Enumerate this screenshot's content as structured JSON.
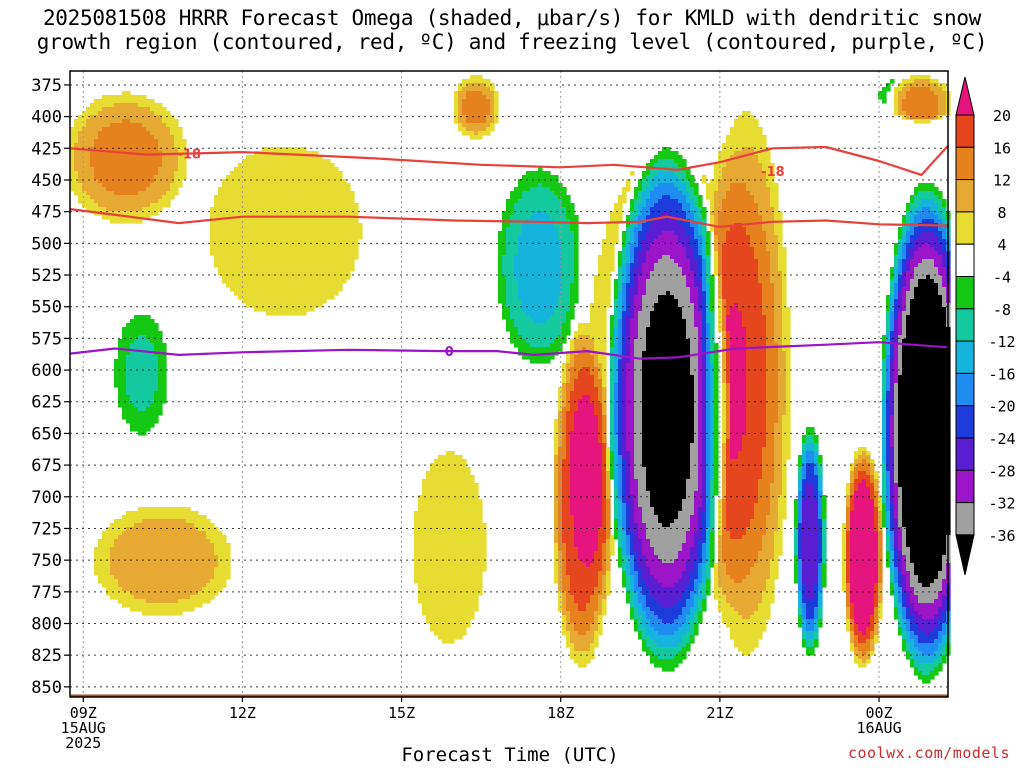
{
  "title_line1": "2025081508 HRRR Forecast Omega (shaded, μbar/s) for KMLD with dendritic snow",
  "title_line2": "growth region (contoured, red, ºC) and freezing level (contoured, purple, ºC)",
  "x_axis_label": "Forecast Time (UTC)",
  "credit": "coolwx.com/models",
  "colors": {
    "dgz_contour": "#e8413c",
    "freezing_contour": "#9a14c8",
    "ground": "#a0522d",
    "omega_scale": {
      "lt_-36": "#000000",
      "-36_-32": "#a0a0a0",
      "-32_-28": "#9a14c8",
      "-28_-24": "#5a1ed2",
      "-24_-20": "#1e3cdc",
      "-20_-16": "#1e8cf0",
      "-16_-12": "#14b4dc",
      "-12_-8": "#14c8a0",
      "-8_-4": "#14c814",
      "-4_4": "#ffffff",
      "4_8": "#e6dc32",
      "8_12": "#e6aa32",
      "12_16": "#e6821e",
      "16_20": "#e6461e",
      "gt_20": "#e6147d"
    }
  },
  "chart_data": {
    "type": "heatmap",
    "title": "2025081508 HRRR Forecast Omega (shaded, μbar/s) for KMLD with dendritic snow growth region (contoured, red, ºC) and freezing level (contoured, purple, ºC)",
    "xlabel": "Forecast Time (UTC)",
    "ylabel": "",
    "y_axis": {
      "unit": "hPa",
      "inverted": true,
      "range": [
        364,
        858
      ],
      "ticks": [
        375,
        400,
        425,
        450,
        475,
        500,
        525,
        550,
        575,
        600,
        625,
        650,
        675,
        700,
        725,
        750,
        775,
        800,
        825,
        850
      ]
    },
    "x_axis": {
      "unit": "hours UTC from 2025-08-15 09Z",
      "range": [
        -0.25,
        16.3
      ],
      "ticks": [
        {
          "hour": 0,
          "label": "09Z",
          "label2": "15AUG",
          "label3": "2025"
        },
        {
          "hour": 3,
          "label": "12Z",
          "label2": "",
          "label3": ""
        },
        {
          "hour": 6,
          "label": "15Z",
          "label2": "",
          "label3": ""
        },
        {
          "hour": 9,
          "label": "18Z",
          "label2": "",
          "label3": ""
        },
        {
          "hour": 12,
          "label": "21Z",
          "label2": "",
          "label3": ""
        },
        {
          "hour": 15,
          "label": "00Z",
          "label2": "16AUG",
          "label3": ""
        }
      ]
    },
    "colorbar": {
      "labels": [
        "20",
        "16",
        "12",
        "8",
        "4",
        "-4",
        "-8",
        "-12",
        "-16",
        "-20",
        "-24",
        "-28",
        "-32",
        "-36"
      ],
      "boundaries": [
        20,
        16,
        12,
        8,
        4,
        -4,
        -8,
        -12,
        -16,
        -20,
        -24,
        -28,
        -32,
        -36
      ],
      "bins_top_to_bottom": [
        "gt_20",
        "16_20",
        "12_16",
        "8_12",
        "4_8",
        "-4_4",
        "-8_-4",
        "-12_-8",
        "-16_-12",
        "-20_-16",
        "-24_-20",
        "-28_-24",
        "-32_-28",
        "-36_-32",
        "lt_-36"
      ]
    },
    "omega_features": [
      {
        "kind": "ascent",
        "center_hour": 11.0,
        "top_hpa": 412,
        "bottom_hpa": 845,
        "min_value": -40,
        "half_width_hours": 1.2
      },
      {
        "kind": "ascent",
        "center_hour": 15.9,
        "top_hpa": 445,
        "bottom_hpa": 852,
        "min_value": -40,
        "half_width_hours": 0.9
      },
      {
        "kind": "ascent",
        "center_hour": 8.6,
        "top_hpa": 432,
        "bottom_hpa": 605,
        "min_value": -12,
        "half_width_hours": 0.9
      },
      {
        "kind": "ascent",
        "center_hour": 1.1,
        "top_hpa": 545,
        "bottom_hpa": 660,
        "min_value": -8,
        "half_width_hours": 0.6
      },
      {
        "kind": "ascent",
        "center_hour": 13.7,
        "top_hpa": 640,
        "bottom_hpa": 830,
        "min_value": -24,
        "half_width_hours": 0.3
      },
      {
        "kind": "ascent",
        "center_hour": 15.8,
        "top_hpa": 365,
        "bottom_hpa": 400,
        "min_value": -12,
        "half_width_hours": 0.9
      },
      {
        "kind": "descent",
        "center_hour": 14.7,
        "top_hpa": 655,
        "bottom_hpa": 840,
        "max_value": 24,
        "half_width_hours": 0.4
      },
      {
        "kind": "descent",
        "center_hour": 15.8,
        "top_hpa": 365,
        "bottom_hpa": 405,
        "max_value": 24,
        "half_width_hours": 0.7
      },
      {
        "kind": "descent",
        "center_hour": 0.8,
        "top_hpa": 375,
        "bottom_hpa": 490,
        "max_value": 12,
        "half_width_hours": 1.3
      },
      {
        "kind": "descent",
        "center_hour": 1.5,
        "top_hpa": 700,
        "bottom_hpa": 800,
        "max_value": 10,
        "half_width_hours": 1.5
      },
      {
        "kind": "descent",
        "center_hour": 9.4,
        "top_hpa": 560,
        "bottom_hpa": 845,
        "max_value": 18,
        "half_width_hours": 0.6
      },
      {
        "kind": "descent",
        "center_hour": 12.5,
        "top_hpa": 375,
        "bottom_hpa": 845,
        "max_value": 14,
        "half_width_hours": 0.9
      },
      {
        "kind": "descent",
        "center_hour": 7.4,
        "top_hpa": 365,
        "bottom_hpa": 420,
        "max_value": 12,
        "half_width_hours": 0.5
      },
      {
        "kind": "descent",
        "center_hour": 3.8,
        "top_hpa": 400,
        "bottom_hpa": 580,
        "max_value": 6,
        "half_width_hours": 1.9
      },
      {
        "kind": "descent",
        "center_hour": 6.9,
        "top_hpa": 640,
        "bottom_hpa": 840,
        "max_value": 6,
        "half_width_hours": 0.9
      },
      {
        "kind": "descent",
        "center_hour": 11.0,
        "top_hpa": 365,
        "bottom_hpa": 850,
        "max_value": 6,
        "half_width_hours": 2.0
      }
    ],
    "contours": [
      {
        "name": "-18",
        "color_key": "dgz_contour",
        "label": "-18",
        "label_points": [
          [
            2.0,
            429
          ],
          [
            13.0,
            443
          ]
        ],
        "points": [
          [
            -0.25,
            425
          ],
          [
            1.2,
            430
          ],
          [
            3.0,
            428
          ],
          [
            5.5,
            433
          ],
          [
            7.5,
            438
          ],
          [
            9.0,
            440
          ],
          [
            10.0,
            438
          ],
          [
            11.2,
            442
          ],
          [
            12.0,
            436
          ],
          [
            13.0,
            425
          ],
          [
            14.0,
            424
          ],
          [
            15.0,
            435
          ],
          [
            15.8,
            446
          ],
          [
            16.3,
            423
          ]
        ]
      },
      {
        "name": "-12",
        "color_key": "dgz_contour",
        "label": "",
        "label_points": [],
        "points": [
          [
            -0.25,
            473
          ],
          [
            0.7,
            478
          ],
          [
            1.8,
            484
          ],
          [
            3.0,
            479
          ],
          [
            5.0,
            479
          ],
          [
            7.0,
            482
          ],
          [
            8.5,
            483
          ],
          [
            9.5,
            484
          ],
          [
            10.5,
            483
          ],
          [
            11.0,
            479
          ],
          [
            12.0,
            487
          ],
          [
            13.0,
            483
          ],
          [
            14.0,
            482
          ],
          [
            15.0,
            485
          ],
          [
            16.3,
            486
          ]
        ]
      },
      {
        "name": "0",
        "color_key": "freezing_contour",
        "label": "0",
        "label_points": [
          [
            6.9,
            585
          ]
        ],
        "points": [
          [
            -0.25,
            587
          ],
          [
            0.6,
            583
          ],
          [
            1.8,
            588
          ],
          [
            3.0,
            586
          ],
          [
            5.0,
            584
          ],
          [
            6.8,
            585
          ],
          [
            7.8,
            585
          ],
          [
            8.5,
            588
          ],
          [
            9.5,
            585
          ],
          [
            10.5,
            591
          ],
          [
            11.2,
            590
          ],
          [
            12.3,
            583
          ],
          [
            14.0,
            580
          ],
          [
            15.0,
            578
          ],
          [
            16.3,
            582
          ]
        ]
      }
    ],
    "ground_level_hpa": 856,
    "grid": true,
    "legend": "colorbar right"
  }
}
